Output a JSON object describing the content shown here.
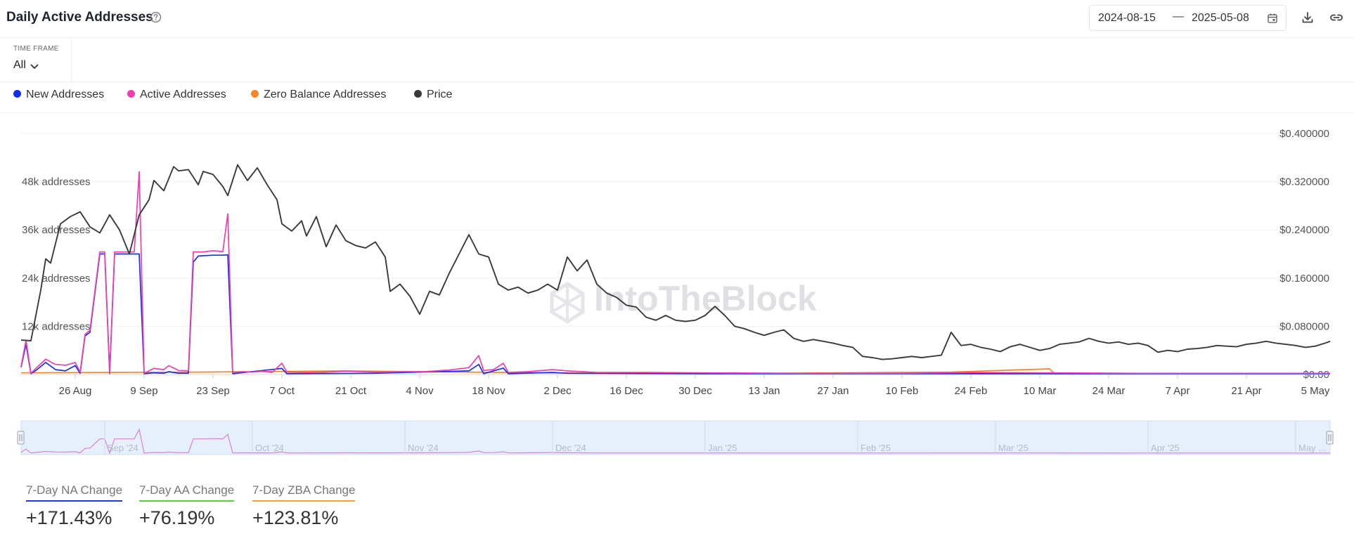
{
  "header": {
    "title": "Daily Active Addresses",
    "date_start": "2024-08-15",
    "date_separator": "—",
    "date_end": "2025-05-08"
  },
  "timeframe": {
    "label": "TIME FRAME",
    "value": "All"
  },
  "legend": [
    {
      "label": "New Addresses",
      "color": "#1330e8"
    },
    {
      "label": "Active Addresses",
      "color": "#ee3eb0"
    },
    {
      "label": "Zero Balance Addresses",
      "color": "#f7862b"
    },
    {
      "label": "Price",
      "color": "#3a3a3a"
    }
  ],
  "watermark": "IntoTheBlock",
  "chart_data": {
    "type": "line",
    "x_start": "2024-08-15",
    "x_end": "2025-05-08",
    "x_tick_labels": [
      "26 Aug",
      "9 Sep",
      "23 Sep",
      "7 Oct",
      "21 Oct",
      "4 Nov",
      "18 Nov",
      "2 Dec",
      "16 Dec",
      "30 Dec",
      "13 Jan",
      "27 Jan",
      "10 Feb",
      "24 Feb",
      "10 Mar",
      "24 Mar",
      "7 Apr",
      "21 Apr",
      "5 May"
    ],
    "y_left_tick_labels": [
      "12k addresses",
      "24k addresses",
      "36k addresses",
      "48k addresses"
    ],
    "y_right_tick_labels": [
      "$0.00",
      "$0.080000",
      "$0.160000",
      "$0.240000",
      "$0.320000",
      "$0.400000"
    ],
    "y_left_range": [
      0,
      60000
    ],
    "y_right_range": [
      0,
      0.4
    ],
    "grid": true,
    "legend_position": "top-left",
    "navigator_labels": [
      "Sep '24",
      "Oct '24",
      "Nov '24",
      "Dec '24",
      "Jan '25",
      "Feb '25",
      "Mar '25",
      "Apr '25",
      "May ..."
    ],
    "series": [
      {
        "name": "Price",
        "axis": "right",
        "color": "#3a3a3a",
        "points": [
          [
            "2024-08-15",
            0.057
          ],
          [
            "2024-08-17",
            0.056
          ],
          [
            "2024-08-19",
            0.14
          ],
          [
            "2024-08-20",
            0.192
          ],
          [
            "2024-08-21",
            0.185
          ],
          [
            "2024-08-23",
            0.25
          ],
          [
            "2024-08-25",
            0.262
          ],
          [
            "2024-08-27",
            0.27
          ],
          [
            "2024-08-29",
            0.245
          ],
          [
            "2024-08-31",
            0.235
          ],
          [
            "2024-09-02",
            0.265
          ],
          [
            "2024-09-04",
            0.24
          ],
          [
            "2024-09-06",
            0.2
          ],
          [
            "2024-09-08",
            0.265
          ],
          [
            "2024-09-10",
            0.29
          ],
          [
            "2024-09-11",
            0.322
          ],
          [
            "2024-09-13",
            0.305
          ],
          [
            "2024-09-15",
            0.345
          ],
          [
            "2024-09-16",
            0.338
          ],
          [
            "2024-09-18",
            0.34
          ],
          [
            "2024-09-20",
            0.315
          ],
          [
            "2024-09-21",
            0.337
          ],
          [
            "2024-09-23",
            0.332
          ],
          [
            "2024-09-25",
            0.312
          ],
          [
            "2024-09-26",
            0.297
          ],
          [
            "2024-09-28",
            0.348
          ],
          [
            "2024-09-30",
            0.322
          ],
          [
            "2024-10-02",
            0.343
          ],
          [
            "2024-10-04",
            0.315
          ],
          [
            "2024-10-06",
            0.29
          ],
          [
            "2024-10-07",
            0.25
          ],
          [
            "2024-10-09",
            0.238
          ],
          [
            "2024-10-11",
            0.255
          ],
          [
            "2024-10-12",
            0.23
          ],
          [
            "2024-10-14",
            0.262
          ],
          [
            "2024-10-16",
            0.212
          ],
          [
            "2024-10-18",
            0.248
          ],
          [
            "2024-10-20",
            0.222
          ],
          [
            "2024-10-22",
            0.214
          ],
          [
            "2024-10-24",
            0.21
          ],
          [
            "2024-10-26",
            0.22
          ],
          [
            "2024-10-28",
            0.195
          ],
          [
            "2024-10-29",
            0.138
          ],
          [
            "2024-10-31",
            0.15
          ],
          [
            "2024-11-02",
            0.13
          ],
          [
            "2024-11-04",
            0.1
          ],
          [
            "2024-11-06",
            0.138
          ],
          [
            "2024-11-08",
            0.132
          ],
          [
            "2024-11-10",
            0.168
          ],
          [
            "2024-11-12",
            0.2
          ],
          [
            "2024-11-14",
            0.232
          ],
          [
            "2024-11-16",
            0.2
          ],
          [
            "2024-11-18",
            0.195
          ],
          [
            "2024-11-20",
            0.15
          ],
          [
            "2024-11-22",
            0.14
          ],
          [
            "2024-11-24",
            0.145
          ],
          [
            "2024-11-26",
            0.135
          ],
          [
            "2024-11-28",
            0.14
          ],
          [
            "2024-11-30",
            0.15
          ],
          [
            "2024-12-02",
            0.14
          ],
          [
            "2024-12-04",
            0.195
          ],
          [
            "2024-12-06",
            0.172
          ],
          [
            "2024-12-08",
            0.19
          ],
          [
            "2024-12-10",
            0.15
          ],
          [
            "2024-12-12",
            0.135
          ],
          [
            "2024-12-14",
            0.128
          ],
          [
            "2024-12-16",
            0.115
          ],
          [
            "2024-12-18",
            0.112
          ],
          [
            "2024-12-20",
            0.095
          ],
          [
            "2024-12-22",
            0.09
          ],
          [
            "2024-12-24",
            0.098
          ],
          [
            "2024-12-26",
            0.09
          ],
          [
            "2024-12-28",
            0.088
          ],
          [
            "2024-12-30",
            0.09
          ],
          [
            "2025-01-01",
            0.098
          ],
          [
            "2025-01-03",
            0.113
          ],
          [
            "2025-01-05",
            0.098
          ],
          [
            "2025-01-07",
            0.08
          ],
          [
            "2025-01-09",
            0.076
          ],
          [
            "2025-01-11",
            0.07
          ],
          [
            "2025-01-13",
            0.065
          ],
          [
            "2025-01-15",
            0.07
          ],
          [
            "2025-01-17",
            0.074
          ],
          [
            "2025-01-19",
            0.06
          ],
          [
            "2025-01-21",
            0.055
          ],
          [
            "2025-01-23",
            0.058
          ],
          [
            "2025-01-25",
            0.055
          ],
          [
            "2025-01-27",
            0.052
          ],
          [
            "2025-01-29",
            0.048
          ],
          [
            "2025-01-31",
            0.045
          ],
          [
            "2025-02-02",
            0.03
          ],
          [
            "2025-02-04",
            0.028
          ],
          [
            "2025-02-06",
            0.025
          ],
          [
            "2025-02-08",
            0.026
          ],
          [
            "2025-02-10",
            0.028
          ],
          [
            "2025-02-12",
            0.03
          ],
          [
            "2025-02-14",
            0.028
          ],
          [
            "2025-02-16",
            0.03
          ],
          [
            "2025-02-18",
            0.032
          ],
          [
            "2025-02-20",
            0.07
          ],
          [
            "2025-02-22",
            0.048
          ],
          [
            "2025-02-24",
            0.05
          ],
          [
            "2025-02-26",
            0.045
          ],
          [
            "2025-02-28",
            0.042
          ],
          [
            "2025-03-02",
            0.038
          ],
          [
            "2025-03-04",
            0.046
          ],
          [
            "2025-03-06",
            0.05
          ],
          [
            "2025-03-08",
            0.045
          ],
          [
            "2025-03-10",
            0.04
          ],
          [
            "2025-03-12",
            0.043
          ],
          [
            "2025-03-14",
            0.05
          ],
          [
            "2025-03-16",
            0.052
          ],
          [
            "2025-03-18",
            0.054
          ],
          [
            "2025-03-20",
            0.06
          ],
          [
            "2025-03-22",
            0.055
          ],
          [
            "2025-03-24",
            0.052
          ],
          [
            "2025-03-26",
            0.054
          ],
          [
            "2025-03-28",
            0.05
          ],
          [
            "2025-03-30",
            0.052
          ],
          [
            "2025-04-01",
            0.048
          ],
          [
            "2025-04-03",
            0.037
          ],
          [
            "2025-04-05",
            0.04
          ],
          [
            "2025-04-07",
            0.038
          ],
          [
            "2025-04-09",
            0.042
          ],
          [
            "2025-04-11",
            0.043
          ],
          [
            "2025-04-13",
            0.045
          ],
          [
            "2025-04-15",
            0.048
          ],
          [
            "2025-04-17",
            0.047
          ],
          [
            "2025-04-19",
            0.046
          ],
          [
            "2025-04-21",
            0.05
          ],
          [
            "2025-04-23",
            0.052
          ],
          [
            "2025-04-25",
            0.055
          ],
          [
            "2025-04-27",
            0.052
          ],
          [
            "2025-04-29",
            0.05
          ],
          [
            "2025-05-01",
            0.048
          ],
          [
            "2025-05-03",
            0.045
          ],
          [
            "2025-05-05",
            0.047
          ],
          [
            "2025-05-07",
            0.052
          ],
          [
            "2025-05-08",
            0.055
          ]
        ]
      },
      {
        "name": "Active Addresses",
        "axis": "left",
        "color": "#ee3eb0",
        "points": [
          [
            "2024-08-15",
            2000
          ],
          [
            "2024-08-16",
            8500
          ],
          [
            "2024-08-17",
            300
          ],
          [
            "2024-08-18",
            1500
          ],
          [
            "2024-08-20",
            3800
          ],
          [
            "2024-08-22",
            2500
          ],
          [
            "2024-08-24",
            2300
          ],
          [
            "2024-08-26",
            3000
          ],
          [
            "2024-08-27",
            600
          ],
          [
            "2024-08-28",
            10000
          ],
          [
            "2024-08-29",
            11000
          ],
          [
            "2024-08-31",
            30500
          ],
          [
            "2024-09-01",
            30500
          ],
          [
            "2024-09-02",
            300
          ],
          [
            "2024-09-03",
            30500
          ],
          [
            "2024-09-05",
            30500
          ],
          [
            "2024-09-07",
            30500
          ],
          [
            "2024-09-08",
            50500
          ],
          [
            "2024-09-09",
            300
          ],
          [
            "2024-09-11",
            1500
          ],
          [
            "2024-09-13",
            1200
          ],
          [
            "2024-09-14",
            2200
          ],
          [
            "2024-09-16",
            1000
          ],
          [
            "2024-09-18",
            900
          ],
          [
            "2024-09-19",
            30500
          ],
          [
            "2024-09-21",
            30500
          ],
          [
            "2024-09-23",
            30800
          ],
          [
            "2024-09-25",
            30600
          ],
          [
            "2024-09-26",
            40000
          ],
          [
            "2024-09-27",
            500
          ],
          [
            "2024-09-29",
            700
          ],
          [
            "2024-10-01",
            600
          ],
          [
            "2024-10-03",
            800
          ],
          [
            "2024-10-05",
            500
          ],
          [
            "2024-10-07",
            2800
          ],
          [
            "2024-10-08",
            600
          ],
          [
            "2024-10-12",
            500
          ],
          [
            "2024-10-16",
            600
          ],
          [
            "2024-10-20",
            800
          ],
          [
            "2024-10-26",
            600
          ],
          [
            "2024-11-01",
            700
          ],
          [
            "2024-11-05",
            700
          ],
          [
            "2024-11-10",
            1100
          ],
          [
            "2024-11-14",
            1700
          ],
          [
            "2024-11-16",
            4700
          ],
          [
            "2024-11-17",
            1000
          ],
          [
            "2024-11-19",
            1200
          ],
          [
            "2024-11-21",
            2800
          ],
          [
            "2024-11-22",
            500
          ],
          [
            "2024-11-26",
            700
          ],
          [
            "2024-12-01",
            1200
          ],
          [
            "2024-12-04",
            900
          ],
          [
            "2024-12-10",
            500
          ],
          [
            "2024-12-20",
            500
          ],
          [
            "2025-01-01",
            400
          ],
          [
            "2025-01-20",
            300
          ],
          [
            "2025-02-10",
            300
          ],
          [
            "2025-02-24",
            500
          ],
          [
            "2025-03-12",
            400
          ],
          [
            "2025-03-30",
            300
          ],
          [
            "2025-04-20",
            300
          ],
          [
            "2025-05-08",
            300
          ]
        ]
      },
      {
        "name": "New Addresses",
        "axis": "left",
        "color": "#1330e8",
        "points": [
          [
            "2024-08-15",
            1800
          ],
          [
            "2024-08-16",
            7500
          ],
          [
            "2024-08-17",
            200
          ],
          [
            "2024-08-18",
            1000
          ],
          [
            "2024-08-20",
            3000
          ],
          [
            "2024-08-22",
            1200
          ],
          [
            "2024-08-24",
            900
          ],
          [
            "2024-08-26",
            2200
          ],
          [
            "2024-08-27",
            300
          ],
          [
            "2024-08-28",
            9600
          ],
          [
            "2024-08-29",
            10500
          ],
          [
            "2024-08-31",
            30000
          ],
          [
            "2024-09-01",
            30000
          ],
          [
            "2024-09-02",
            200
          ],
          [
            "2024-09-03",
            30000
          ],
          [
            "2024-09-05",
            30000
          ],
          [
            "2024-09-07",
            30000
          ],
          [
            "2024-09-08",
            30000
          ],
          [
            "2024-09-09",
            200
          ],
          [
            "2024-09-11",
            400
          ],
          [
            "2024-09-13",
            300
          ],
          [
            "2024-09-14",
            700
          ],
          [
            "2024-09-16",
            300
          ],
          [
            "2024-09-18",
            300
          ],
          [
            "2024-09-19",
            28000
          ],
          [
            "2024-09-20",
            29500
          ],
          [
            "2024-09-23",
            29700
          ],
          [
            "2024-09-25",
            29700
          ],
          [
            "2024-09-26",
            29800
          ],
          [
            "2024-09-27",
            200
          ],
          [
            "2024-10-07",
            1500
          ],
          [
            "2024-10-08",
            200
          ],
          [
            "2024-10-26",
            300
          ],
          [
            "2024-11-14",
            900
          ],
          [
            "2024-11-16",
            2500
          ],
          [
            "2024-11-17",
            200
          ],
          [
            "2024-11-21",
            1600
          ],
          [
            "2024-11-22",
            200
          ],
          [
            "2024-12-01",
            500
          ],
          [
            "2024-12-04",
            300
          ],
          [
            "2025-01-01",
            200
          ],
          [
            "2025-03-12",
            200
          ],
          [
            "2025-05-08",
            200
          ]
        ]
      },
      {
        "name": "Zero Balance Addresses",
        "axis": "left",
        "color": "#f7862b",
        "points": [
          [
            "2024-08-15",
            400
          ],
          [
            "2024-09-01",
            500
          ],
          [
            "2024-09-20",
            600
          ],
          [
            "2024-10-20",
            900
          ],
          [
            "2024-11-04",
            700
          ],
          [
            "2024-12-01",
            400
          ],
          [
            "2025-01-01",
            200
          ],
          [
            "2025-02-20",
            600
          ],
          [
            "2025-03-12",
            1400
          ],
          [
            "2025-03-13",
            200
          ],
          [
            "2025-05-08",
            300
          ]
        ]
      }
    ]
  },
  "stats": [
    {
      "label": "7-Day NA Change",
      "value": "+171.43%",
      "color": "#2238d6"
    },
    {
      "label": "7-Day AA Change",
      "value": "+76.19%",
      "color": "#66c84b"
    },
    {
      "label": "7-Day ZBA Change",
      "value": "+123.81%",
      "color": "#f3a04a"
    }
  ]
}
